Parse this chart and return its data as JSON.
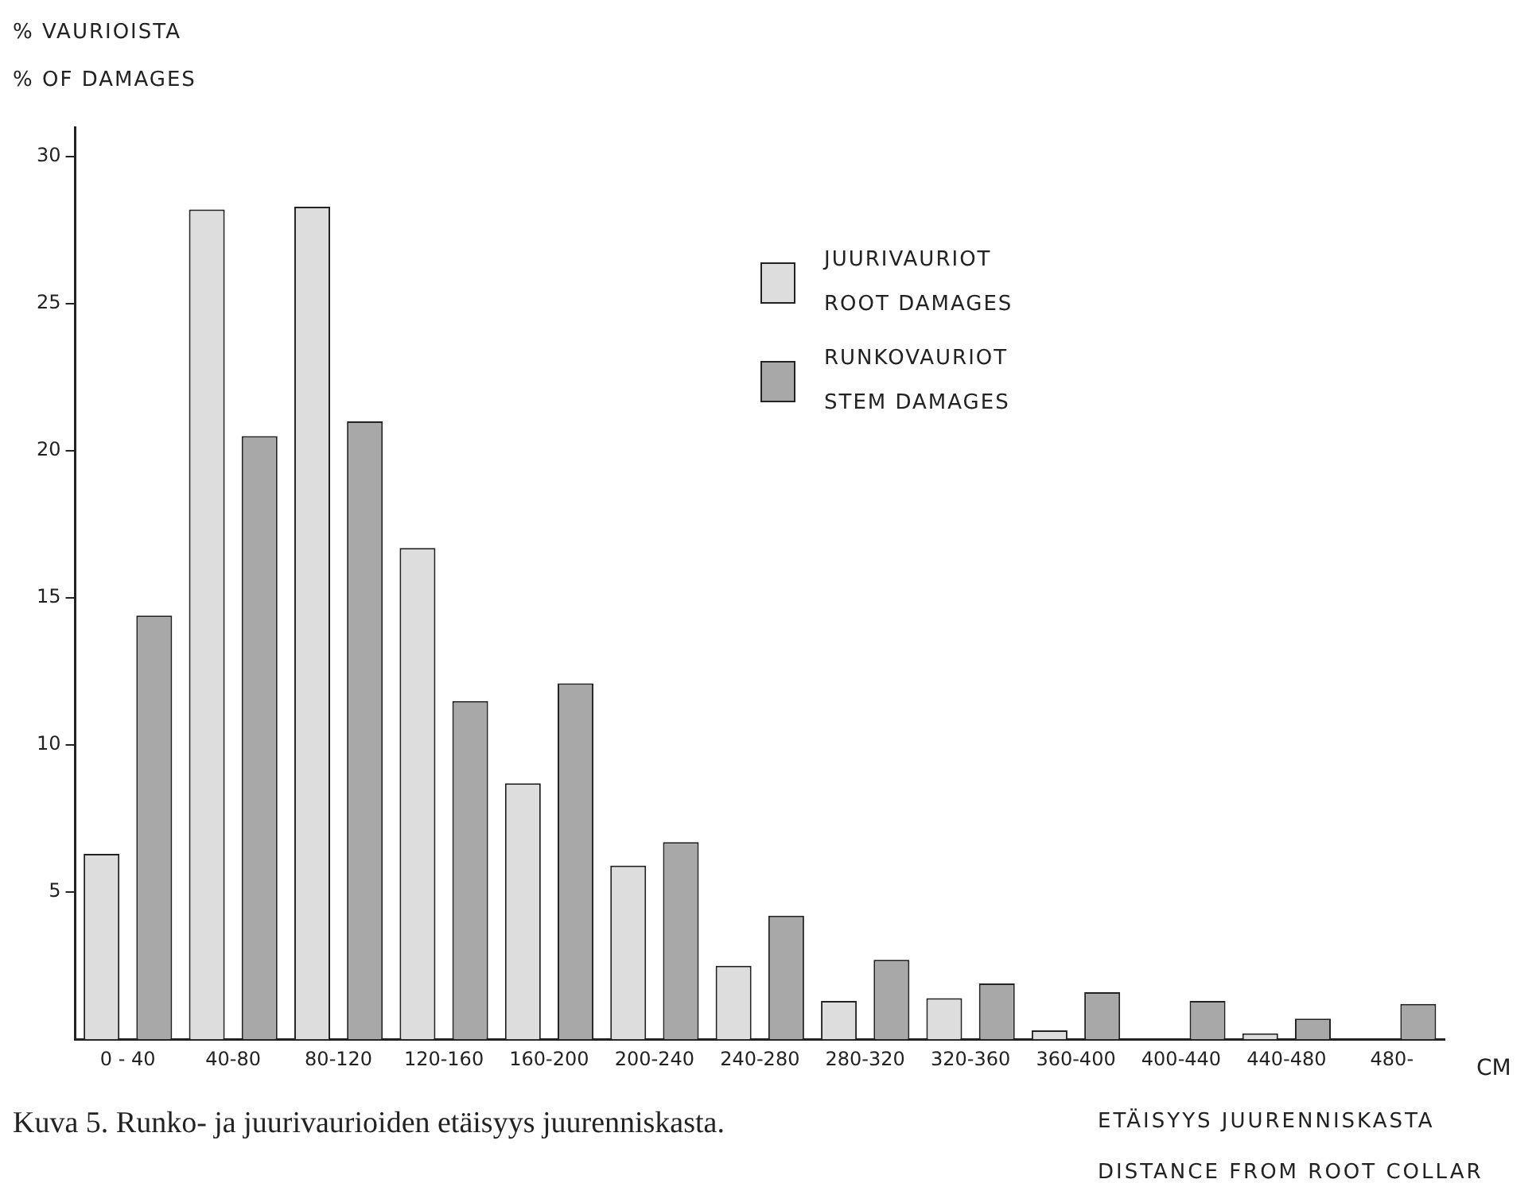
{
  "chart_data": {
    "type": "bar",
    "ylabel": "% VAURIOISTA\n% OF DAMAGES",
    "xlabel": "ETÄISYYS JUURENNISKASTA\nDISTANCE FROM ROOT COLLAR",
    "annotations": [
      "CM",
      "Kuva 5. Runko- ja juurivaurioiden etäisyys juurenniskasta."
    ],
    "categories": [
      "0 - 40",
      "40-80",
      "80-120",
      "120-160",
      "160-200",
      "200-240",
      "240-280",
      "280-320",
      "320-360",
      "360-400",
      "400-440",
      "440-480",
      "480-"
    ],
    "series": [
      {
        "name": "JUURIVAURIOT\nROOT DAMAGES",
        "color": "#dddddd",
        "values": [
          6.3,
          28.2,
          28.3,
          16.7,
          8.7,
          5.9,
          2.5,
          1.3,
          1.4,
          0.3,
          null,
          0.2,
          null
        ]
      },
      {
        "name": "RUNKOVAURIOT\nSTEM DAMAGES",
        "color": "#a8a8a8",
        "values": [
          14.4,
          20.5,
          21.0,
          11.5,
          12.1,
          6.7,
          4.2,
          2.7,
          1.9,
          1.6,
          1.3,
          0.7,
          1.2
        ]
      }
    ],
    "ylim": [
      0,
      31
    ],
    "yticks": [
      5,
      10,
      15,
      20,
      25,
      30
    ],
    "grid": false,
    "legend": "top right"
  }
}
